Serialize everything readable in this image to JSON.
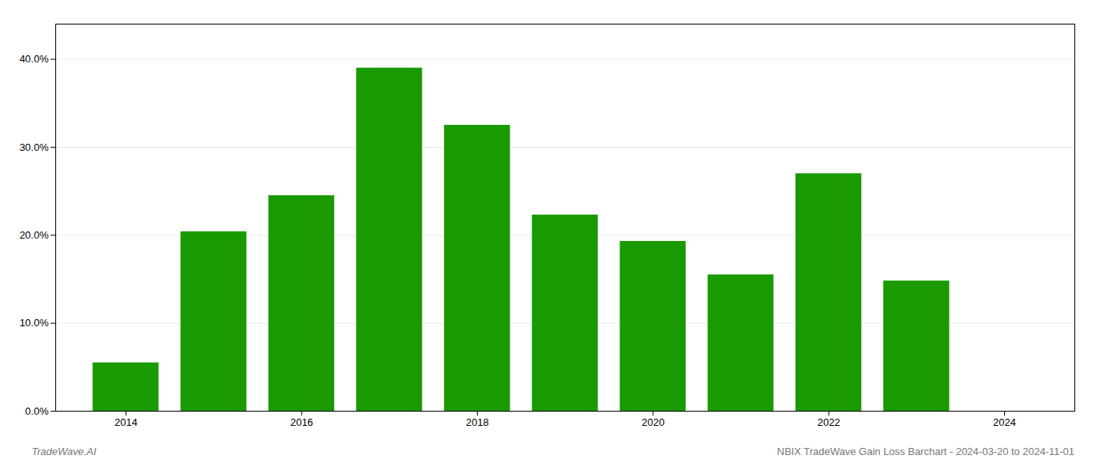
{
  "chart_data": {
    "type": "bar",
    "x": [
      2014,
      2015,
      2016,
      2017,
      2018,
      2019,
      2020,
      2021,
      2022,
      2023
    ],
    "values": [
      0.055,
      0.204,
      0.245,
      0.39,
      0.325,
      0.223,
      0.193,
      0.155,
      0.27,
      0.148
    ],
    "color": "#1a9a00",
    "xlim": [
      2013.2,
      2024.8
    ],
    "xticks": [
      2014,
      2016,
      2018,
      2020,
      2022,
      2024
    ],
    "ylim": [
      0,
      0.44
    ],
    "yticks": [
      {
        "value": 0.0,
        "label": "0.0%"
      },
      {
        "value": 0.1,
        "label": "10.0%"
      },
      {
        "value": 0.2,
        "label": "20.0%"
      },
      {
        "value": 0.3,
        "label": "30.0%"
      },
      {
        "value": 0.4,
        "label": "40.0%"
      }
    ],
    "grid": true,
    "annotations": [
      "TradeWave.AI",
      "NBIX TradeWave Gain Loss Barchart - 2024-03-20 to 2024-11-01"
    ]
  }
}
